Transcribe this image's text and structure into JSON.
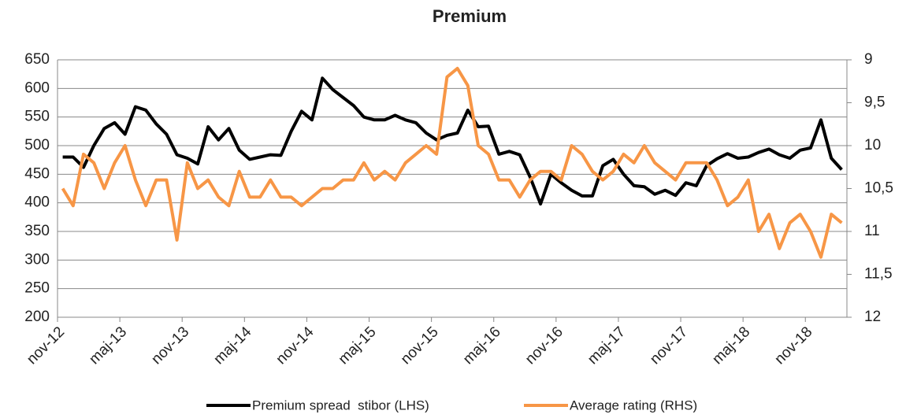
{
  "chart_data": {
    "type": "line",
    "title": "Premium",
    "categories": [
      "nov-12",
      null,
      null,
      null,
      null,
      null,
      "maj-13",
      null,
      null,
      null,
      null,
      null,
      "nov-13",
      null,
      null,
      null,
      null,
      null,
      "maj-14",
      null,
      null,
      null,
      null,
      null,
      "nov-14",
      null,
      null,
      null,
      null,
      null,
      "maj-15",
      null,
      null,
      null,
      null,
      null,
      "nov-15",
      null,
      null,
      null,
      null,
      null,
      "maj-16",
      null,
      null,
      null,
      null,
      null,
      "nov-16",
      null,
      null,
      null,
      null,
      null,
      "maj-17",
      null,
      null,
      null,
      null,
      null,
      "nov-17",
      null,
      null,
      null,
      null,
      null,
      "maj-18",
      null,
      null,
      null,
      null,
      null,
      "nov-18",
      null,
      null,
      null
    ],
    "series": [
      {
        "name": "Premium spread  stibor (LHS)",
        "color": "#000000",
        "axis": "y",
        "values": [
          480,
          480,
          462,
          500,
          530,
          540,
          520,
          568,
          562,
          538,
          520,
          484,
          478,
          468,
          533,
          510,
          530,
          492,
          476,
          480,
          484,
          483,
          525,
          560,
          545,
          618,
          598,
          584,
          570,
          550,
          545,
          545,
          553,
          545,
          540,
          522,
          510,
          518,
          522,
          562,
          533,
          534,
          485,
          490,
          484,
          445,
          398,
          450,
          435,
          422,
          412,
          412,
          465,
          476,
          450,
          430,
          428,
          415,
          422,
          413,
          435,
          430,
          465,
          477,
          486,
          478,
          480,
          488,
          494,
          484,
          478,
          492,
          496,
          545,
          478,
          458
        ]
      },
      {
        "name": "Average rating (RHS)",
        "color": "#f79646",
        "axis": "y2",
        "values": [
          10.5,
          10.7,
          10.1,
          10.2,
          10.5,
          10.2,
          10.0,
          10.4,
          10.7,
          10.4,
          10.4,
          11.1,
          10.2,
          10.5,
          10.4,
          10.6,
          10.7,
          10.3,
          10.6,
          10.6,
          10.4,
          10.6,
          10.6,
          10.7,
          10.6,
          10.5,
          10.5,
          10.4,
          10.4,
          10.2,
          10.4,
          10.3,
          10.4,
          10.2,
          10.1,
          10.0,
          10.1,
          9.2,
          9.1,
          9.3,
          10.0,
          10.1,
          10.4,
          10.4,
          10.6,
          10.4,
          10.3,
          10.3,
          10.4,
          10.0,
          10.1,
          10.3,
          10.4,
          10.3,
          10.1,
          10.2,
          10.0,
          10.2,
          10.3,
          10.4,
          10.2,
          10.2,
          10.2,
          10.4,
          10.7,
          10.6,
          10.4,
          11.0,
          10.8,
          11.2,
          10.9,
          10.8,
          11.0,
          11.3,
          10.8,
          10.9
        ]
      }
    ],
    "ylim": [
      200,
      650
    ],
    "yticks": [
      200,
      250,
      300,
      350,
      400,
      450,
      500,
      550,
      600,
      650
    ],
    "y2lim": [
      12,
      9
    ],
    "y2ticks": [
      12,
      {
        "value": 11.5,
        "label": "11,5"
      },
      11,
      {
        "value": 10.5,
        "label": "10,5"
      },
      10,
      {
        "value": 9.5,
        "label": "9,5"
      },
      9
    ],
    "grid": true,
    "legend": "bottom"
  }
}
